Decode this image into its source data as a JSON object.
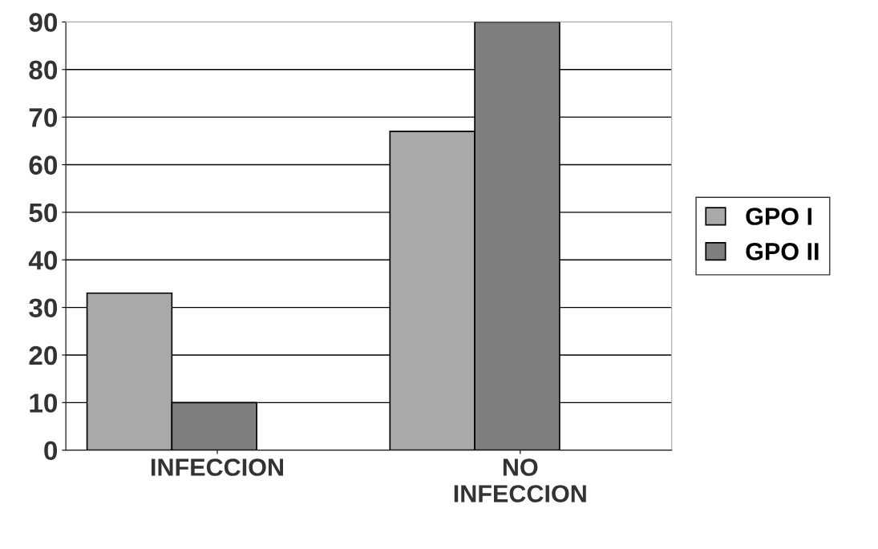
{
  "chart_data": {
    "type": "bar",
    "categories": [
      "INFECCION",
      "NO INFECCION"
    ],
    "series": [
      {
        "name": "GPO I",
        "color": "#a9a9a9",
        "values": [
          33,
          67
        ]
      },
      {
        "name": "GPO II",
        "color": "#7f7f7f",
        "values": [
          10,
          90
        ]
      }
    ],
    "ylim": [
      0,
      90
    ],
    "yticks": [
      0,
      10,
      20,
      30,
      40,
      50,
      60,
      70,
      80,
      90
    ],
    "grid": "y",
    "legend": "right"
  }
}
